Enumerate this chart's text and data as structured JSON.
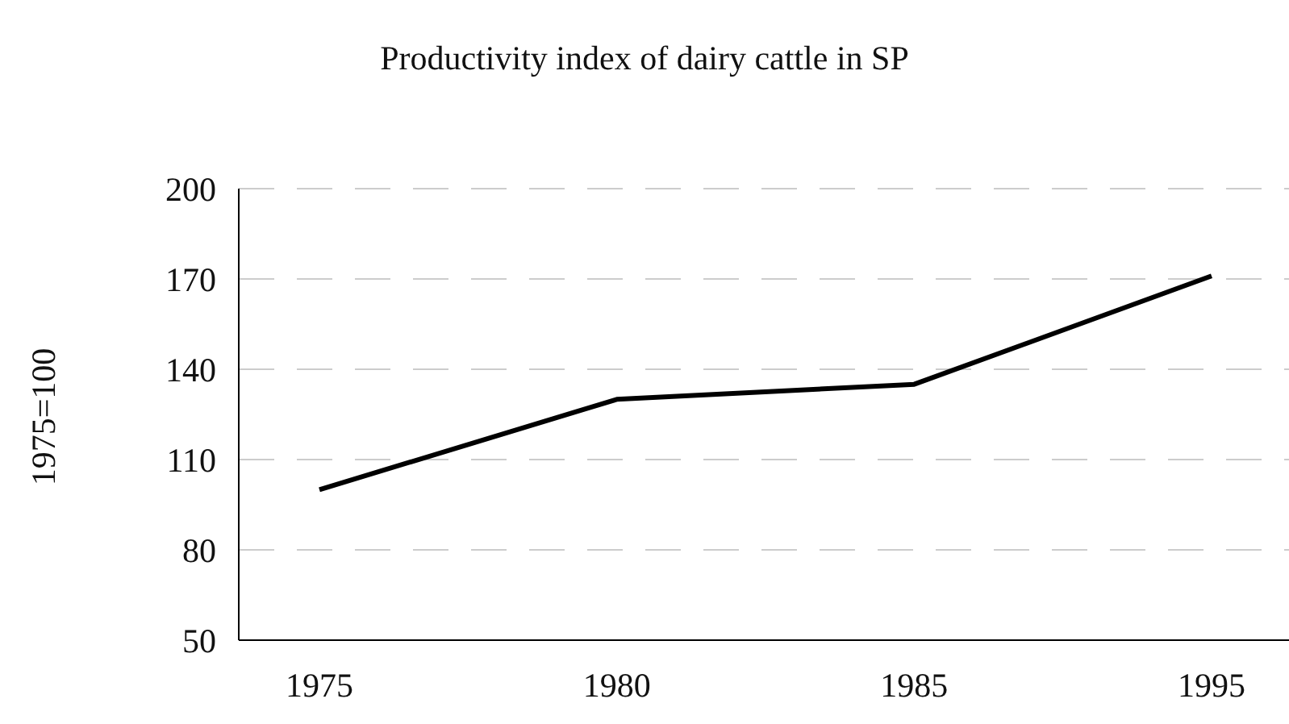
{
  "chart_data": {
    "type": "line",
    "title": "Productivity index of dairy cattle in SP",
    "ylabel": "1975=100",
    "categories": [
      "1975",
      "1980",
      "1985",
      "1995"
    ],
    "series": [
      {
        "color": "#000000",
        "values": [
          100,
          130,
          135,
          171
        ]
      }
    ],
    "ylim": [
      50,
      200
    ],
    "yticks": [
      50,
      80,
      110,
      140,
      170,
      200
    ],
    "grid": "y",
    "legend": false,
    "marker": "none",
    "line_style": "solid"
  }
}
